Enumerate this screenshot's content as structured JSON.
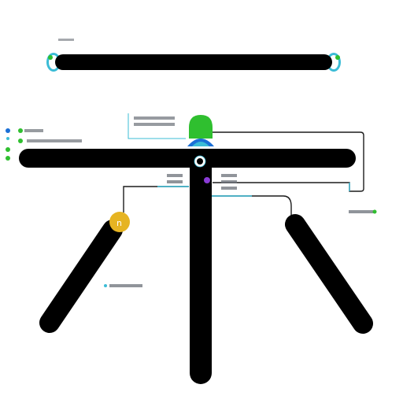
{
  "diagram": {
    "junction_letter": "n",
    "colors": {
      "rod": "#000000",
      "wire": "#1c1c1c",
      "accent_cyan": "#3bbcd6",
      "accent_green": "#2fbf2f",
      "accent_yellow": "#e6b422",
      "accent_purple": "#8a3bd6",
      "accent_blue": "#1a6fd6",
      "label_text": "#6b7078"
    },
    "labels": {
      "top_caption": "",
      "top_note": "",
      "left_note_1": "",
      "left_note_2": "",
      "center_note_left": "",
      "center_note_right": "",
      "right_note": "",
      "bottom_note": ""
    }
  }
}
